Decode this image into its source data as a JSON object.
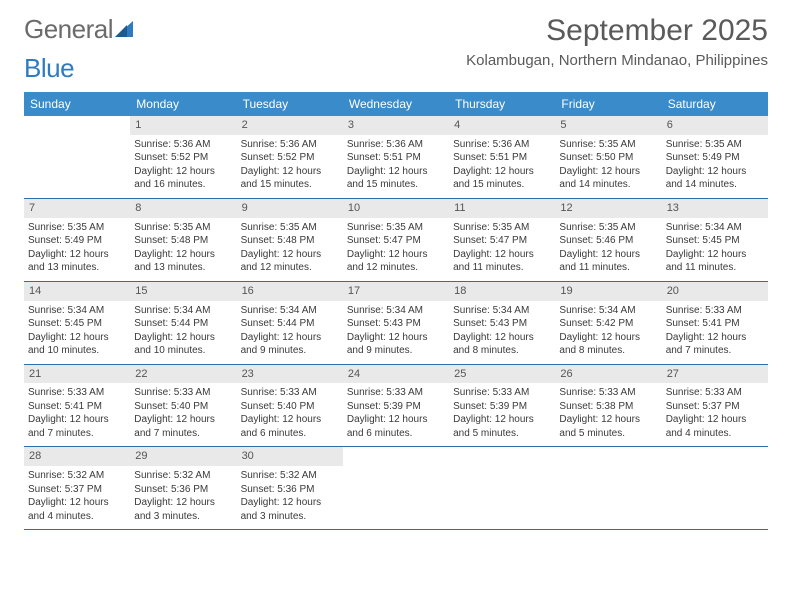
{
  "logo": {
    "text_a": "General",
    "text_b": "Blue"
  },
  "title": "September 2025",
  "location": "Kolambugan, Northern Mindanao, Philippines",
  "colors": {
    "header_bg": "#3a8bc9",
    "header_text": "#ffffff",
    "daynum_bg": "#e9e9e9",
    "week_border": "#2f6ea8",
    "body_text": "#3a3a3a",
    "title_text": "#5a5a5a"
  },
  "dow": [
    "Sunday",
    "Monday",
    "Tuesday",
    "Wednesday",
    "Thursday",
    "Friday",
    "Saturday"
  ],
  "weeks": [
    [
      {
        "n": "",
        "sr": "",
        "ss": "",
        "dl": ""
      },
      {
        "n": "1",
        "sr": "Sunrise: 5:36 AM",
        "ss": "Sunset: 5:52 PM",
        "dl": "Daylight: 12 hours and 16 minutes."
      },
      {
        "n": "2",
        "sr": "Sunrise: 5:36 AM",
        "ss": "Sunset: 5:52 PM",
        "dl": "Daylight: 12 hours and 15 minutes."
      },
      {
        "n": "3",
        "sr": "Sunrise: 5:36 AM",
        "ss": "Sunset: 5:51 PM",
        "dl": "Daylight: 12 hours and 15 minutes."
      },
      {
        "n": "4",
        "sr": "Sunrise: 5:36 AM",
        "ss": "Sunset: 5:51 PM",
        "dl": "Daylight: 12 hours and 15 minutes."
      },
      {
        "n": "5",
        "sr": "Sunrise: 5:35 AM",
        "ss": "Sunset: 5:50 PM",
        "dl": "Daylight: 12 hours and 14 minutes."
      },
      {
        "n": "6",
        "sr": "Sunrise: 5:35 AM",
        "ss": "Sunset: 5:49 PM",
        "dl": "Daylight: 12 hours and 14 minutes."
      }
    ],
    [
      {
        "n": "7",
        "sr": "Sunrise: 5:35 AM",
        "ss": "Sunset: 5:49 PM",
        "dl": "Daylight: 12 hours and 13 minutes."
      },
      {
        "n": "8",
        "sr": "Sunrise: 5:35 AM",
        "ss": "Sunset: 5:48 PM",
        "dl": "Daylight: 12 hours and 13 minutes."
      },
      {
        "n": "9",
        "sr": "Sunrise: 5:35 AM",
        "ss": "Sunset: 5:48 PM",
        "dl": "Daylight: 12 hours and 12 minutes."
      },
      {
        "n": "10",
        "sr": "Sunrise: 5:35 AM",
        "ss": "Sunset: 5:47 PM",
        "dl": "Daylight: 12 hours and 12 minutes."
      },
      {
        "n": "11",
        "sr": "Sunrise: 5:35 AM",
        "ss": "Sunset: 5:47 PM",
        "dl": "Daylight: 12 hours and 11 minutes."
      },
      {
        "n": "12",
        "sr": "Sunrise: 5:35 AM",
        "ss": "Sunset: 5:46 PM",
        "dl": "Daylight: 12 hours and 11 minutes."
      },
      {
        "n": "13",
        "sr": "Sunrise: 5:34 AM",
        "ss": "Sunset: 5:45 PM",
        "dl": "Daylight: 12 hours and 11 minutes."
      }
    ],
    [
      {
        "n": "14",
        "sr": "Sunrise: 5:34 AM",
        "ss": "Sunset: 5:45 PM",
        "dl": "Daylight: 12 hours and 10 minutes."
      },
      {
        "n": "15",
        "sr": "Sunrise: 5:34 AM",
        "ss": "Sunset: 5:44 PM",
        "dl": "Daylight: 12 hours and 10 minutes."
      },
      {
        "n": "16",
        "sr": "Sunrise: 5:34 AM",
        "ss": "Sunset: 5:44 PM",
        "dl": "Daylight: 12 hours and 9 minutes."
      },
      {
        "n": "17",
        "sr": "Sunrise: 5:34 AM",
        "ss": "Sunset: 5:43 PM",
        "dl": "Daylight: 12 hours and 9 minutes."
      },
      {
        "n": "18",
        "sr": "Sunrise: 5:34 AM",
        "ss": "Sunset: 5:43 PM",
        "dl": "Daylight: 12 hours and 8 minutes."
      },
      {
        "n": "19",
        "sr": "Sunrise: 5:34 AM",
        "ss": "Sunset: 5:42 PM",
        "dl": "Daylight: 12 hours and 8 minutes."
      },
      {
        "n": "20",
        "sr": "Sunrise: 5:33 AM",
        "ss": "Sunset: 5:41 PM",
        "dl": "Daylight: 12 hours and 7 minutes."
      }
    ],
    [
      {
        "n": "21",
        "sr": "Sunrise: 5:33 AM",
        "ss": "Sunset: 5:41 PM",
        "dl": "Daylight: 12 hours and 7 minutes."
      },
      {
        "n": "22",
        "sr": "Sunrise: 5:33 AM",
        "ss": "Sunset: 5:40 PM",
        "dl": "Daylight: 12 hours and 7 minutes."
      },
      {
        "n": "23",
        "sr": "Sunrise: 5:33 AM",
        "ss": "Sunset: 5:40 PM",
        "dl": "Daylight: 12 hours and 6 minutes."
      },
      {
        "n": "24",
        "sr": "Sunrise: 5:33 AM",
        "ss": "Sunset: 5:39 PM",
        "dl": "Daylight: 12 hours and 6 minutes."
      },
      {
        "n": "25",
        "sr": "Sunrise: 5:33 AM",
        "ss": "Sunset: 5:39 PM",
        "dl": "Daylight: 12 hours and 5 minutes."
      },
      {
        "n": "26",
        "sr": "Sunrise: 5:33 AM",
        "ss": "Sunset: 5:38 PM",
        "dl": "Daylight: 12 hours and 5 minutes."
      },
      {
        "n": "27",
        "sr": "Sunrise: 5:33 AM",
        "ss": "Sunset: 5:37 PM",
        "dl": "Daylight: 12 hours and 4 minutes."
      }
    ],
    [
      {
        "n": "28",
        "sr": "Sunrise: 5:32 AM",
        "ss": "Sunset: 5:37 PM",
        "dl": "Daylight: 12 hours and 4 minutes."
      },
      {
        "n": "29",
        "sr": "Sunrise: 5:32 AM",
        "ss": "Sunset: 5:36 PM",
        "dl": "Daylight: 12 hours and 3 minutes."
      },
      {
        "n": "30",
        "sr": "Sunrise: 5:32 AM",
        "ss": "Sunset: 5:36 PM",
        "dl": "Daylight: 12 hours and 3 minutes."
      },
      {
        "n": "",
        "sr": "",
        "ss": "",
        "dl": ""
      },
      {
        "n": "",
        "sr": "",
        "ss": "",
        "dl": ""
      },
      {
        "n": "",
        "sr": "",
        "ss": "",
        "dl": ""
      },
      {
        "n": "",
        "sr": "",
        "ss": "",
        "dl": ""
      }
    ]
  ]
}
